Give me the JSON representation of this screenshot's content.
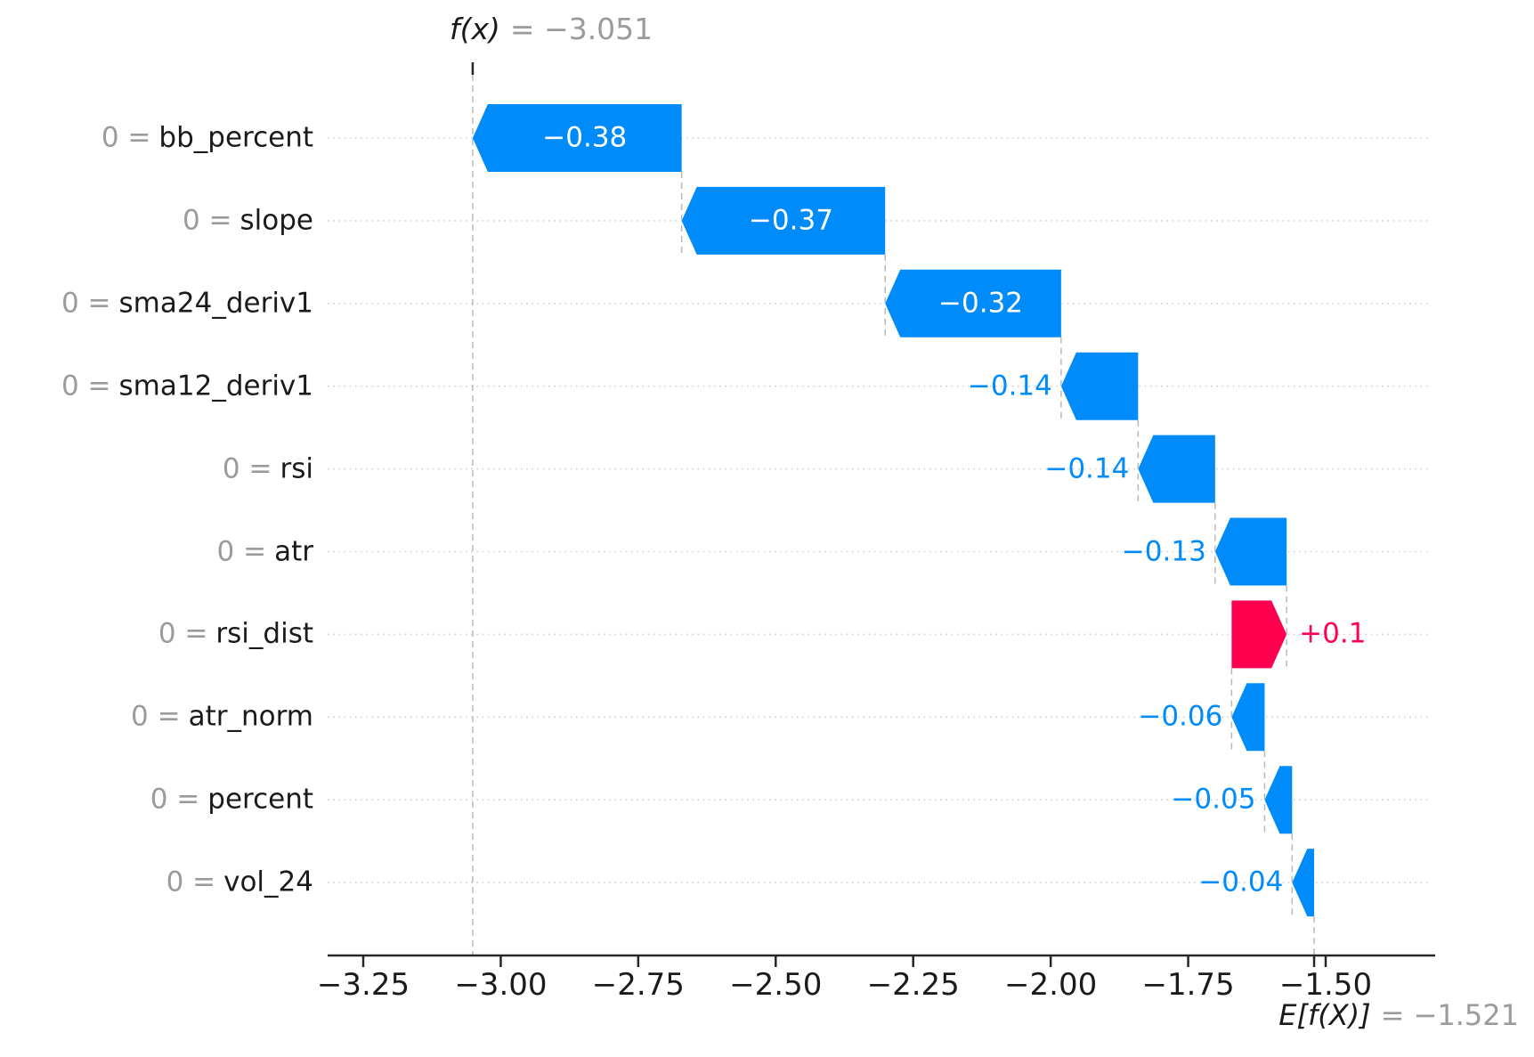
{
  "chart_data": {
    "type": "waterfall",
    "library_style": "shap-waterfall",
    "fx_label": {
      "symbol": "f(x)",
      "value_text": "= −3.051"
    },
    "base_label": {
      "symbol": "E[f(X)]",
      "value_text": "= −1.521"
    },
    "final_value": -3.051,
    "base_value": -1.521,
    "features": [
      {
        "label_prefix": "0 =",
        "name": "bb_percent",
        "contribution": -0.38,
        "display": "−0.38",
        "label_inside": true,
        "sign": "negative"
      },
      {
        "label_prefix": "0 =",
        "name": "slope",
        "contribution": -0.37,
        "display": "−0.37",
        "label_inside": true,
        "sign": "negative"
      },
      {
        "label_prefix": "0 =",
        "name": "sma24_deriv1",
        "contribution": -0.32,
        "display": "−0.32",
        "label_inside": true,
        "sign": "negative"
      },
      {
        "label_prefix": "0 =",
        "name": "sma12_deriv1",
        "contribution": -0.14,
        "display": "−0.14",
        "label_inside": false,
        "sign": "negative"
      },
      {
        "label_prefix": "0 =",
        "name": "rsi",
        "contribution": -0.14,
        "display": "−0.14",
        "label_inside": false,
        "sign": "negative"
      },
      {
        "label_prefix": "0 =",
        "name": "atr",
        "contribution": -0.13,
        "display": "−0.13",
        "label_inside": false,
        "sign": "negative"
      },
      {
        "label_prefix": "0 =",
        "name": "rsi_dist",
        "contribution": 0.1,
        "display": "+0.1",
        "label_inside": false,
        "sign": "positive"
      },
      {
        "label_prefix": "0 =",
        "name": "atr_norm",
        "contribution": -0.06,
        "display": "−0.06",
        "label_inside": false,
        "sign": "negative"
      },
      {
        "label_prefix": "0 =",
        "name": "percent",
        "contribution": -0.05,
        "display": "−0.05",
        "label_inside": false,
        "sign": "negative"
      },
      {
        "label_prefix": "0 =",
        "name": "vol_24",
        "contribution": -0.04,
        "display": "−0.04",
        "label_inside": false,
        "sign": "negative"
      }
    ],
    "x_axis": {
      "tick_labels": [
        "−3.25",
        "−3.00",
        "−2.75",
        "−2.50",
        "−2.25",
        "−2.00",
        "−1.75",
        "−1.50"
      ],
      "tick_values": [
        -3.25,
        -3.0,
        -2.75,
        -2.5,
        -2.25,
        -2.0,
        -1.75,
        -1.5
      ]
    },
    "grid": "horizontal-dotted",
    "legend": "none",
    "colors": {
      "negative": "#008bfb",
      "positive": "#ff0051",
      "inbar_text": "#ffffff",
      "annotation_gray": "#9b9b9b",
      "text_dark": "#1a1a1a",
      "connector": "#b8b8b8",
      "gridline": "#cfcfcf",
      "axis": "#262626",
      "background": "#ffffff"
    }
  }
}
